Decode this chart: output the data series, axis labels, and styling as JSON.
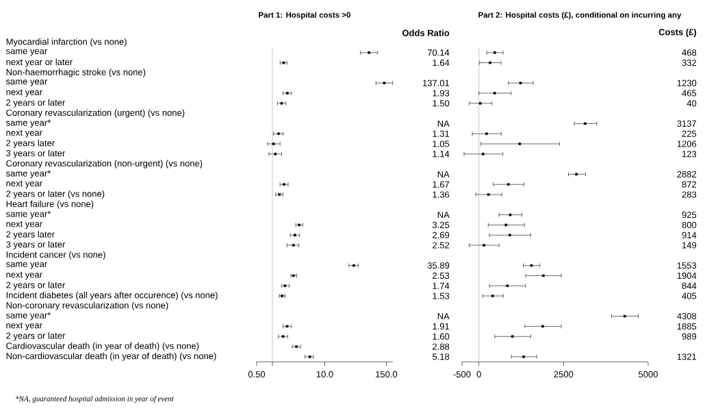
{
  "chart_data": [
    {
      "type": "scatter",
      "orientation": "horizontal",
      "title": "Part 1: Hospital costs >0",
      "categories": [
        "Myocardial infarction (vs none)",
        "same year",
        "next year or later",
        "Non-haemorrhagic stroke (vs none)",
        "same year",
        "next year",
        "2 years or later",
        "Coronary revascularization (urgent) (vs none)",
        "same year*",
        "next year",
        "2 years later",
        "3 years or later",
        "Coronary revascularization (non-urgent) (vs none)",
        "same year*",
        "next year",
        "2 years or later (vs none)",
        "Heart failure (vs none)",
        "same year*",
        "next year",
        "2 years later",
        "3 years or later",
        "Incident cancer (vs none)",
        "same year",
        "next year",
        "2 years or later",
        "Incident diabetes (all years after occurence) (vs none)",
        "Non-coronary revascularization (vs none)",
        "same year*",
        "next year",
        "2 years or later",
        "Cardiovascular death (in year of death) (vs none)",
        "Non-cardiovascular death (in year of death) (vs none)"
      ],
      "values": [
        null,
        70.14,
        1.64,
        null,
        137.01,
        1.93,
        1.5,
        null,
        null,
        1.31,
        1.05,
        1.14,
        null,
        null,
        1.67,
        1.36,
        null,
        null,
        3.25,
        2.69,
        2.52,
        null,
        35.89,
        2.53,
        1.74,
        1.53,
        null,
        null,
        1.91,
        1.6,
        2.88,
        5.18
      ],
      "errors": [
        null,
        [
          48,
          102
        ],
        [
          1.4,
          1.9
        ],
        null,
        [
          95,
          197
        ],
        [
          1.6,
          2.3
        ],
        [
          1.25,
          1.8
        ],
        null,
        null,
        [
          1.05,
          1.6
        ],
        [
          0.8,
          1.4
        ],
        [
          0.86,
          1.5
        ],
        null,
        null,
        [
          1.4,
          2.0
        ],
        [
          1.15,
          1.6
        ],
        null,
        null,
        [
          2.8,
          3.8
        ],
        [
          2.2,
          3.3
        ],
        [
          1.9,
          3.2
        ],
        null,
        [
          29,
          44
        ],
        [
          2.25,
          2.9
        ],
        [
          1.5,
          2.1
        ],
        [
          1.35,
          1.75
        ],
        null,
        null,
        [
          1.6,
          2.3
        ],
        [
          1.3,
          1.95
        ],
        [
          2.4,
          3.45
        ],
        [
          4.2,
          6.1
        ]
      ],
      "value_labels": [
        null,
        "70.14",
        "1.64",
        null,
        "137.01",
        "1.93",
        "1.50",
        null,
        "NA",
        "1.31",
        "1.05",
        "1.14",
        null,
        "NA",
        "1.67",
        "1.36",
        null,
        "NA",
        "3.25",
        "2.69",
        "2.52",
        null,
        "35.89",
        "2.53",
        "1.74",
        "1.53",
        null,
        "NA",
        "1.91",
        "1.60",
        "2.88",
        "5.18"
      ],
      "color": "#000000",
      "marker": "square",
      "log": "x",
      "xlim": [
        0.5,
        200
      ],
      "xticks": [
        {
          "value": 0.5,
          "label": "0.50"
        },
        {
          "value": 1,
          "label": null
        },
        {
          "value": 10,
          "label": "10.0"
        },
        {
          "value": 150,
          "label": "150.0"
        }
      ],
      "ref_lines": [
        {
          "axis": "x",
          "value": 1,
          "label": null,
          "color": "#a0a0a0"
        }
      ],
      "annotations": [
        "Odds Ratio",
        "*NA, guaranteed hospital admission in year of event"
      ]
    },
    {
      "type": "scatter",
      "orientation": "horizontal",
      "title": "Part 2: Hospital costs (£), conditional on incurring any",
      "categories": [
        null,
        null,
        null,
        null,
        null,
        null,
        null,
        null,
        null,
        null,
        null,
        null,
        null,
        null,
        null,
        null,
        null,
        null,
        null,
        null,
        null,
        null,
        null,
        null,
        null,
        null,
        null,
        null,
        null,
        null,
        null,
        null
      ],
      "values": [
        null,
        468,
        332,
        null,
        1230,
        465,
        40,
        null,
        3137,
        225,
        1206,
        123,
        null,
        2882,
        872,
        283,
        null,
        925,
        800,
        914,
        149,
        null,
        1553,
        1904,
        844,
        405,
        null,
        4308,
        1885,
        989,
        null,
        1321
      ],
      "errors": [
        null,
        [
          230,
          715
        ],
        [
          20,
          655
        ],
        null,
        [
          870,
          1605
        ],
        [
          0,
          950
        ],
        [
          -285,
          385
        ],
        null,
        [
          2820,
          3480
        ],
        [
          -195,
          660
        ],
        [
          60,
          2380
        ],
        [
          -440,
          710
        ],
        null,
        [
          2645,
          3150
        ],
        [
          425,
          1330
        ],
        [
          -90,
          675
        ],
        null,
        [
          595,
          1270
        ],
        [
          275,
          1345
        ],
        [
          310,
          1530
        ],
        [
          -285,
          595
        ],
        null,
        [
          1315,
          1800
        ],
        [
          1385,
          2435
        ],
        [
          310,
          1375
        ],
        [
          110,
          720
        ],
        null,
        [
          3920,
          4710
        ],
        [
          1355,
          2435
        ],
        [
          465,
          1530
        ],
        null,
        [
          960,
          1705
        ]
      ],
      "data_labels": true,
      "tick_labels": "x",
      "color": "#000000",
      "marker": "square",
      "xlim": [
        -500,
        5000
      ],
      "xticks": [
        -500,
        0,
        2500,
        5000
      ],
      "ref_lines": [
        {
          "axis": "x",
          "value": 0,
          "label": null,
          "color": "#a0a0a0"
        }
      ],
      "annotations": [
        "Costs (£)"
      ]
    }
  ]
}
